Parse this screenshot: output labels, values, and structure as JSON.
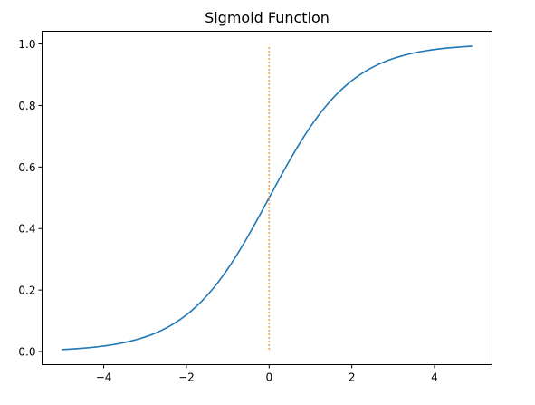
{
  "chart_data": {
    "type": "line",
    "title": "Sigmoid Function",
    "xlabel": "",
    "ylabel": "",
    "xlim": [
      -5.49,
      5.39
    ],
    "ylim": [
      -0.0426,
      1.0414
    ],
    "x_ticks": [
      -4,
      -2,
      0,
      2,
      4
    ],
    "x_tick_labels": [
      "−4",
      "−2",
      "0",
      "2",
      "4"
    ],
    "y_ticks": [
      0.0,
      0.2,
      0.4,
      0.6,
      0.8,
      1.0
    ],
    "y_tick_labels": [
      "0.0",
      "0.2",
      "0.4",
      "0.6",
      "0.8",
      "1.0"
    ],
    "grid": false,
    "legend": "none",
    "series": [
      {
        "style": "solid",
        "color": "#1f77b4",
        "function": "sigmoid",
        "x_range": [
          -5.0,
          4.9
        ],
        "x_step": 0.1
      },
      {
        "style": "dotted",
        "color": "#ff7f0e",
        "x": [
          0,
          0
        ],
        "y": [
          0.0067,
          0.9933
        ]
      }
    ]
  }
}
